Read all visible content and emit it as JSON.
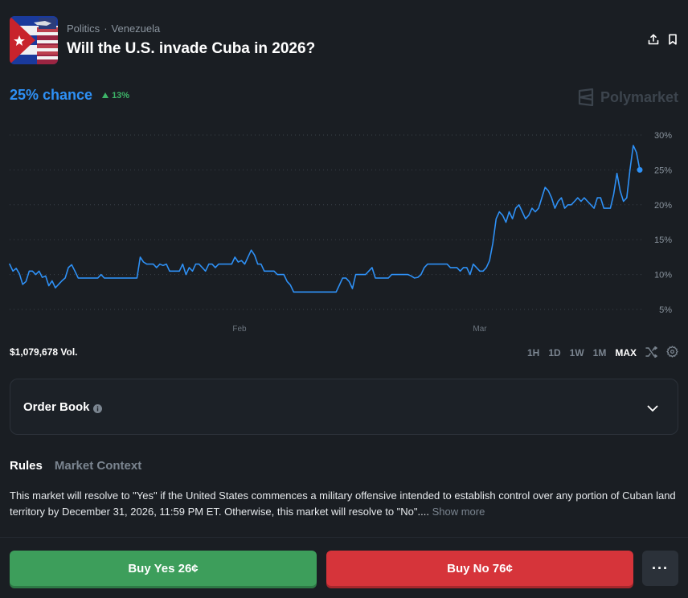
{
  "header": {
    "category": "Politics",
    "subcategory": "Venezuela",
    "title": "Will the U.S. invade Cuba in 2026?",
    "icons": [
      "share-icon",
      "bookmark-icon"
    ]
  },
  "market": {
    "chance_label": "25% chance",
    "change": "13%",
    "brand": "Polymarket",
    "volume": "$1,079,678 Vol."
  },
  "chart_data": {
    "type": "line",
    "y_ticks": [
      "30%",
      "25%",
      "20%",
      "15%",
      "10%",
      "5%"
    ],
    "x_ticks": [
      "Feb",
      "Mar"
    ],
    "ylim": [
      3,
      31
    ],
    "grid": true,
    "color": "#2e90f5",
    "series": [
      {
        "values": [
          11.5,
          10.5,
          10.9,
          10.1,
          8.6,
          9.0,
          10.5,
          10.5,
          10.0,
          10.5,
          9.6,
          9.8,
          8.4,
          9.1,
          8.1,
          8.6,
          9.1,
          9.5,
          11.0,
          11.4,
          10.5,
          9.5,
          9.5,
          9.5,
          9.5,
          9.5,
          9.5,
          9.5,
          10.0,
          9.5,
          9.5,
          9.5,
          9.5,
          9.5,
          9.5,
          9.5,
          9.5,
          9.5,
          9.5,
          9.5,
          12.5,
          11.8,
          11.5,
          11.5,
          11.5,
          11.0,
          11.5,
          11.3,
          11.5,
          10.5,
          10.5,
          10.5,
          10.5,
          11.5,
          10.0,
          11.0,
          10.5,
          11.5,
          11.5,
          11.0,
          10.5,
          11.5,
          11.5,
          11.0,
          11.5,
          11.5,
          11.5,
          11.5,
          11.5,
          12.5,
          11.8,
          12.0,
          11.5,
          12.5,
          13.5,
          12.8,
          11.5,
          11.5,
          10.5,
          10.5,
          10.5,
          10.5,
          10.0,
          10.0,
          10.0,
          9.0,
          8.5,
          7.5,
          7.5,
          7.5,
          7.5,
          7.5,
          7.5,
          7.5,
          7.5,
          7.5,
          7.5,
          7.5,
          7.5,
          7.5,
          7.5,
          8.5,
          9.5,
          9.5,
          9.0,
          8.0,
          10.0,
          10.0,
          10.0,
          10.0,
          10.5,
          11.0,
          9.5,
          9.5,
          9.5,
          9.5,
          9.5,
          10.0,
          10.0,
          10.0,
          10.0,
          10.0,
          10.0,
          9.8,
          9.5,
          9.6,
          10.0,
          11.0,
          11.5,
          11.5,
          11.5,
          11.5,
          11.5,
          11.5,
          11.5,
          11.0,
          11.0,
          11.0,
          10.5,
          11.0,
          11.0,
          10.0,
          11.5,
          11.0,
          10.5,
          10.5,
          11.0,
          12.0,
          14.5,
          18.0,
          19.0,
          18.5,
          17.5,
          19.0,
          18.0,
          19.5,
          20.0,
          19.0,
          18.0,
          18.5,
          19.5,
          19.0,
          19.5,
          21.0,
          22.5,
          22.0,
          21.0,
          19.5,
          20.5,
          21.0,
          19.5,
          20.0,
          20.0,
          20.5,
          21.0,
          20.5,
          21.0,
          20.5,
          20.0,
          19.5,
          21.0,
          21.0,
          19.5,
          19.5,
          19.5,
          21.5,
          24.5,
          22.0,
          20.5,
          21.0,
          25.0,
          28.5,
          27.5,
          25.0
        ]
      }
    ]
  },
  "ranges": [
    "1H",
    "1D",
    "1W",
    "1M",
    "MAX"
  ],
  "active_range": "MAX",
  "order_book": {
    "label": "Order Book"
  },
  "tabs": [
    "Rules",
    "Market Context"
  ],
  "rules": {
    "text": "This market will resolve to \"Yes\" if the United States commences a military offensive intended to establish control over any portion of Cuban land territory by December 31, 2026, 11:59 PM ET. Otherwise, this market will resolve to \"No\"....",
    "show_more": "Show more"
  },
  "actions": {
    "buy_yes": "Buy Yes 26¢",
    "buy_no": "Buy No 76¢",
    "more": "···"
  },
  "colors": {
    "accent": "#2e90f5",
    "positive": "#3db468",
    "yes": "#3d9e5b",
    "no": "#d6343a"
  }
}
